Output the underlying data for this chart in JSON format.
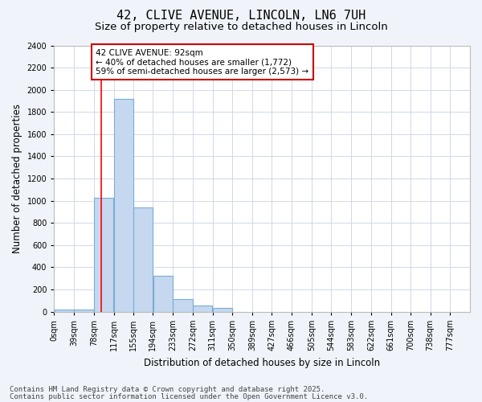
{
  "title1": "42, CLIVE AVENUE, LINCOLN, LN6 7UH",
  "title2": "Size of property relative to detached houses in Lincoln",
  "xlabel": "Distribution of detached houses by size in Lincoln",
  "ylabel": "Number of detached properties",
  "bin_labels": [
    "0sqm",
    "39sqm",
    "78sqm",
    "117sqm",
    "155sqm",
    "194sqm",
    "233sqm",
    "272sqm",
    "311sqm",
    "350sqm",
    "389sqm",
    "427sqm",
    "466sqm",
    "505sqm",
    "544sqm",
    "583sqm",
    "622sqm",
    "661sqm",
    "700sqm",
    "738sqm",
    "777sqm"
  ],
  "bin_edges": [
    0,
    39,
    78,
    117,
    155,
    194,
    233,
    272,
    311,
    350,
    389,
    427,
    466,
    505,
    544,
    583,
    622,
    661,
    700,
    738,
    777
  ],
  "bar_heights": [
    20,
    20,
    1030,
    1920,
    940,
    320,
    110,
    55,
    30,
    0,
    0,
    0,
    0,
    0,
    0,
    0,
    0,
    0,
    0,
    0
  ],
  "bar_color": "#c5d8f0",
  "bar_edge_color": "#7aadd4",
  "red_line_x": 92,
  "annotation_text": "42 CLIVE AVENUE: 92sqm\n← 40% of detached houses are smaller (1,772)\n59% of semi-detached houses are larger (2,573) →",
  "annotation_box_facecolor": "#ffffff",
  "annotation_box_edgecolor": "#cc0000",
  "ylim": [
    0,
    2400
  ],
  "yticks": [
    0,
    200,
    400,
    600,
    800,
    1000,
    1200,
    1400,
    1600,
    1800,
    2000,
    2200,
    2400
  ],
  "footer1": "Contains HM Land Registry data © Crown copyright and database right 2025.",
  "footer2": "Contains public sector information licensed under the Open Government Licence v3.0.",
  "fig_facecolor": "#f0f4fa",
  "plot_facecolor": "#ffffff",
  "grid_color": "#d0d8e8",
  "title_fontsize": 11,
  "subtitle_fontsize": 9.5,
  "axis_label_fontsize": 8.5,
  "tick_fontsize": 7,
  "footer_fontsize": 6.5,
  "annotation_fontsize": 7.5
}
